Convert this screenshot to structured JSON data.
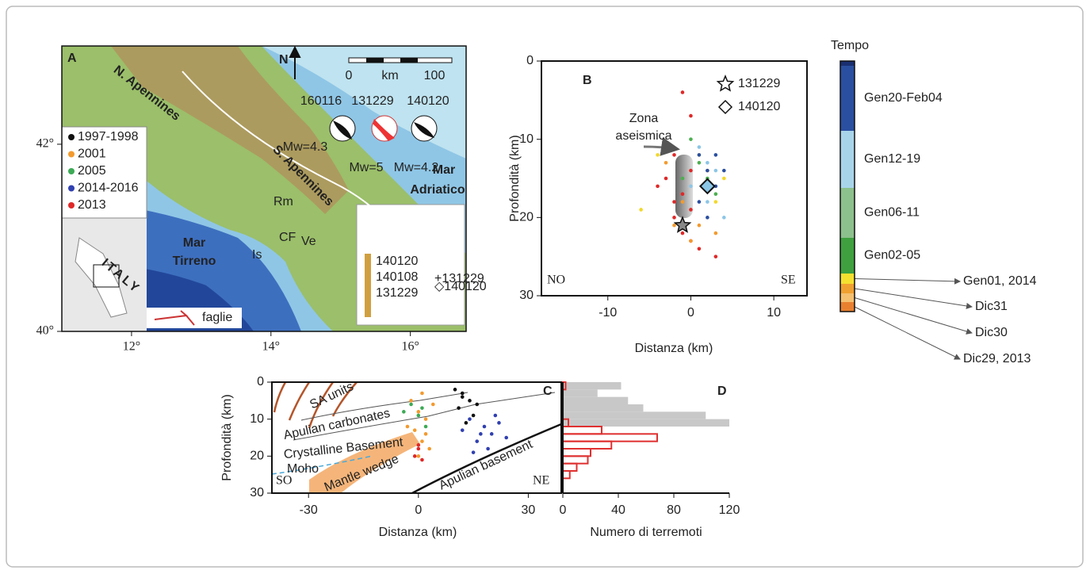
{
  "map": {
    "panel_label": "A",
    "xlim": [
      11,
      16.8
    ],
    "ylim": [
      40,
      43.05
    ],
    "xticks": [
      {
        "value": 12,
        "label": "12°"
      },
      {
        "value": 14,
        "label": "14°"
      },
      {
        "value": 16,
        "label": "16°"
      }
    ],
    "yticks": [
      {
        "value": 40,
        "label": "40°"
      },
      {
        "value": 42,
        "label": "42°"
      }
    ],
    "regions": {
      "n_apennines": "N. Apennines",
      "s_apennines": "S. Apennines",
      "tyrrhenian": [
        "Mar",
        "Tirreno"
      ],
      "adriatic": [
        "Mar",
        "Adriatico"
      ],
      "italy": "ITALY"
    },
    "places": {
      "rm": "Rm",
      "cf": "CF",
      "ve": "Ve",
      "is": "Is"
    },
    "north": "N",
    "scale": {
      "start": "0",
      "unit": "km",
      "end": "100"
    },
    "events": [
      {
        "id": "160116",
        "magnitude": "Mw=4.3"
      },
      {
        "id": "131229",
        "magnitude": "Mw=5"
      },
      {
        "id": "140120",
        "magnitude": "Mw=4.2"
      }
    ],
    "legend": [
      {
        "label": "1997-1998",
        "color": "#111111"
      },
      {
        "label": "2001",
        "color": "#f39a2e"
      },
      {
        "label": "2005",
        "color": "#3caa55"
      },
      {
        "label": "2014-2016",
        "color": "#3040b0"
      },
      {
        "label": "2013",
        "color": "#e02828"
      }
    ],
    "faults": "faglie",
    "inset": {
      "scale_labels": [
        "140120",
        "140108",
        "131229"
      ],
      "markers": [
        "+131229",
        "◇140120"
      ]
    }
  },
  "chart_data": [
    {
      "type": "scatter",
      "panel_label": "B",
      "x_label": "Distanza (km)",
      "y_label": "Profondità (km)",
      "xlim": [
        -18,
        14
      ],
      "ylim": [
        0,
        30
      ],
      "y_inverted": true,
      "xticks": [
        -10,
        0,
        10
      ],
      "yticks": [
        0,
        10,
        20,
        30
      ],
      "left_label": "NO",
      "right_label": "SE",
      "annotation": [
        "Zona",
        "aseismica"
      ],
      "series": [
        {
          "color": "#e02828",
          "x": [
            -1,
            0,
            -2,
            -3,
            -1,
            0,
            -2,
            -1,
            0,
            1,
            -4,
            3,
            -2,
            0
          ],
          "y": [
            4,
            7,
            12,
            15,
            17,
            19,
            20,
            22,
            23,
            24,
            16,
            25,
            18,
            14
          ]
        },
        {
          "color": "#f39a2e",
          "x": [
            -3,
            2,
            -1,
            1,
            0,
            3,
            -2
          ],
          "y": [
            13,
            14,
            18,
            21,
            23,
            22,
            21
          ]
        },
        {
          "color": "#f2d82a",
          "x": [
            -4,
            1,
            -6,
            3,
            4
          ],
          "y": [
            12,
            12,
            19,
            18,
            15
          ]
        },
        {
          "color": "#4caf50",
          "x": [
            0,
            1,
            2,
            -1,
            3
          ],
          "y": [
            10,
            13,
            15,
            15,
            17
          ]
        },
        {
          "color": "#8cc6e6",
          "x": [
            1,
            2,
            3,
            0,
            2,
            4
          ],
          "y": [
            11,
            13,
            14,
            16,
            18,
            20
          ]
        },
        {
          "color": "#2a4fa0",
          "x": [
            1,
            2,
            4,
            3,
            1,
            2,
            3
          ],
          "y": [
            12,
            14,
            14,
            16,
            18,
            20,
            12
          ]
        },
        {
          "name": "131229",
          "marker": "star",
          "color": "#888888",
          "x": [
            -1
          ],
          "y": [
            21
          ]
        },
        {
          "name": "140120",
          "marker": "diamond",
          "color": "#8cc6e6",
          "x": [
            2
          ],
          "y": [
            16
          ]
        }
      ]
    },
    {
      "type": "scatter",
      "panel_label": "C",
      "x_label": "Distanza (km)",
      "y_label": "Profondità (km)",
      "xlim": [
        -40,
        39
      ],
      "ylim": [
        0,
        30
      ],
      "y_inverted": true,
      "xticks": [
        -30,
        0,
        30
      ],
      "yticks": [
        0,
        10,
        20,
        30
      ],
      "left_label": "SO",
      "right_label": "NE",
      "units": [
        "SA units",
        "Apulian carbonates",
        "Crystalline Basement",
        "Moho",
        "Mantle wedge",
        "Apulian basement"
      ],
      "series": [
        {
          "color": "#111111",
          "x": [
            10,
            12,
            14,
            11,
            15,
            13,
            16,
            12
          ],
          "y": [
            2,
            3,
            5,
            7,
            9,
            11,
            6,
            4
          ]
        },
        {
          "color": "#f39a2e",
          "x": [
            -2,
            0,
            2,
            -1,
            1,
            3,
            0,
            -3,
            4,
            1,
            2
          ],
          "y": [
            5,
            8,
            10,
            13,
            16,
            18,
            20,
            12,
            6,
            3,
            14
          ]
        },
        {
          "color": "#3caa55",
          "x": [
            -2,
            0,
            2,
            -4,
            1
          ],
          "y": [
            6,
            9,
            12,
            8,
            7
          ]
        },
        {
          "color": "#3040b0",
          "x": [
            14,
            18,
            20,
            16,
            22,
            12,
            19,
            24,
            15,
            21,
            17
          ],
          "y": [
            10,
            12,
            14,
            16,
            11,
            13,
            18,
            15,
            19,
            9,
            14
          ]
        },
        {
          "color": "#e02828",
          "x": [
            0,
            -1,
            1,
            0
          ],
          "y": [
            18,
            20,
            21,
            17
          ]
        }
      ]
    },
    {
      "type": "histogram",
      "panel_label": "D",
      "x_label": "Numero di terremoti",
      "xlim": [
        0,
        120
      ],
      "xticks": [
        0,
        40,
        80,
        120
      ],
      "bins": [
        0,
        2,
        4,
        6,
        8,
        10,
        12,
        14,
        16,
        18,
        20,
        22,
        24,
        26,
        28,
        30
      ],
      "series": [
        {
          "color": "#c8c8c8",
          "style": "solid",
          "values": [
            42,
            25,
            47,
            58,
            103,
            120,
            0,
            0,
            0,
            0,
            0,
            0,
            0,
            0,
            0
          ]
        },
        {
          "color": "#e03030",
          "style": "outline",
          "values": [
            2,
            0,
            0,
            0,
            0,
            4,
            28,
            68,
            35,
            20,
            18,
            10,
            5,
            0,
            0
          ]
        }
      ]
    }
  ],
  "colorbar": {
    "title": "Tempo",
    "segments": [
      {
        "label": "Gen20-Feb04",
        "color": "#2a4fa0"
      },
      {
        "label": "Gen12-19",
        "color": "#a8d4ea"
      },
      {
        "label": "Gen06-11",
        "color": "#8cc08c"
      },
      {
        "label": "Gen02-05",
        "color": "#3ea03e"
      },
      {
        "label": "Gen01, 2014",
        "color": "#f5e030"
      },
      {
        "label": "Dic31",
        "color": "#f0a030"
      },
      {
        "label": "Dic30",
        "color": "#f5c070"
      },
      {
        "label": "Dic29, 2013",
        "color": "#e88030"
      }
    ]
  }
}
